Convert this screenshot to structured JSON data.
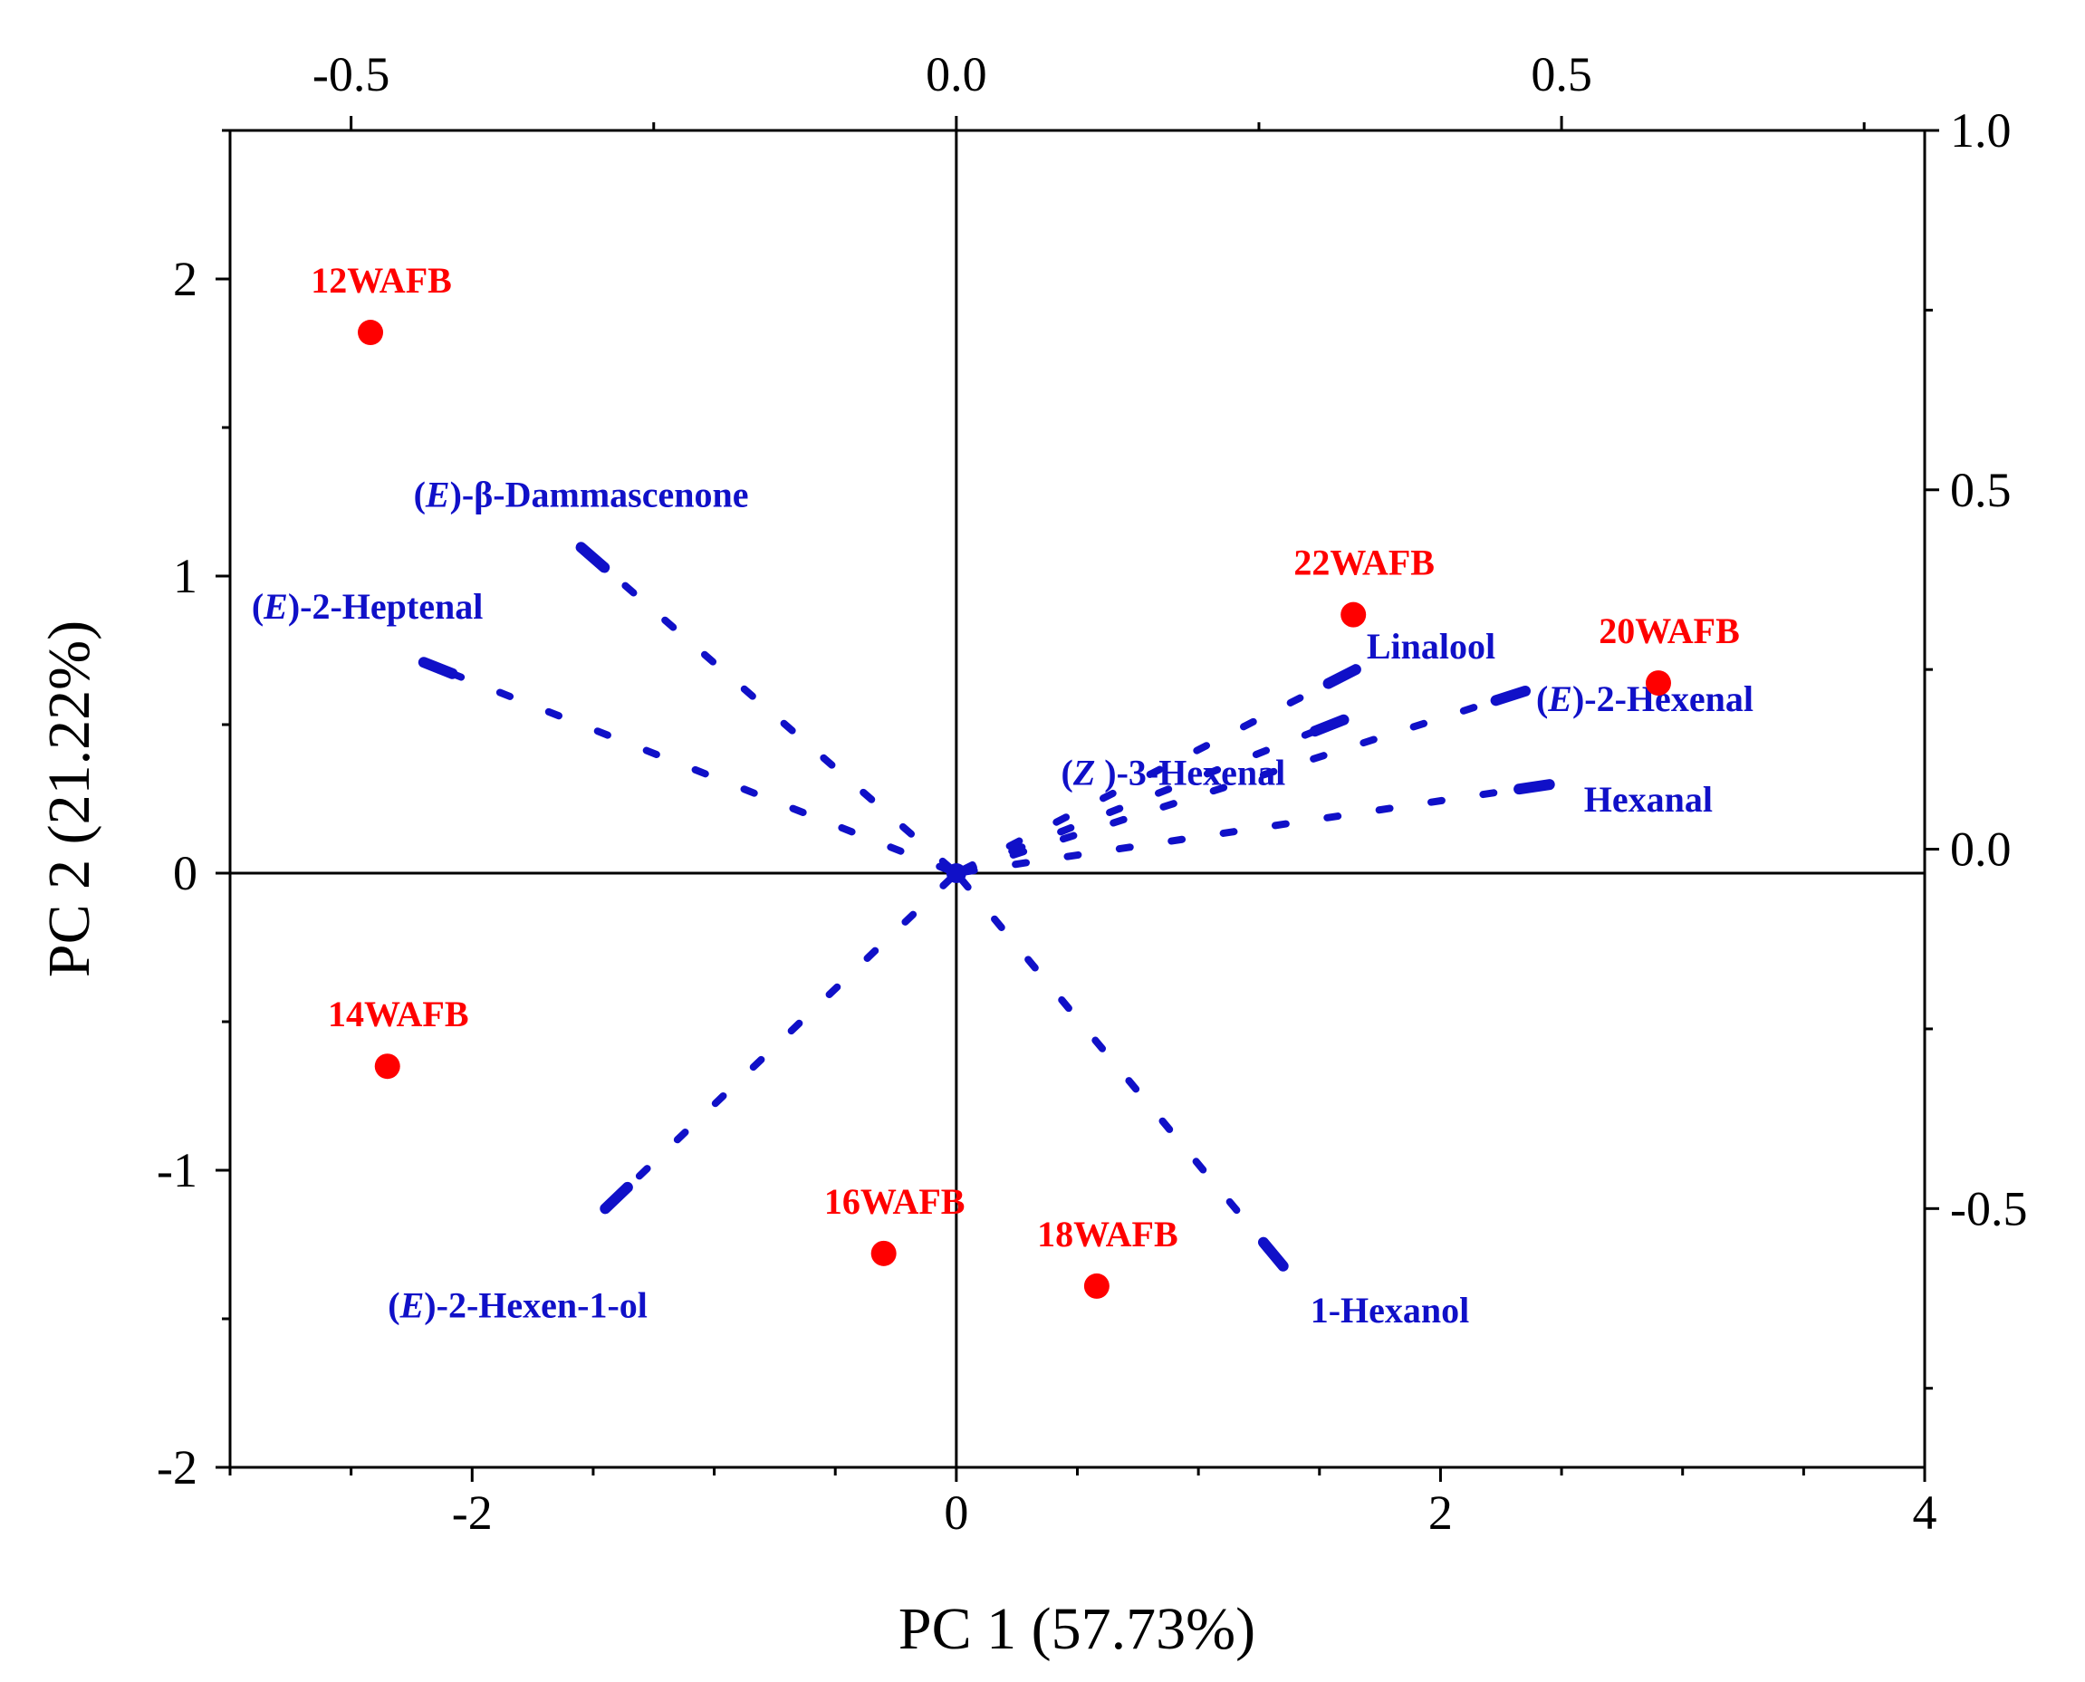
{
  "chart_data": {
    "type": "scatter",
    "subtype": "pca-biplot",
    "title": "",
    "xlabel": "PC 1 (57.73%)",
    "ylabel": "PC 2 (21.22%)",
    "xlim": [
      -3,
      4
    ],
    "ylim": [
      -2,
      2.5
    ],
    "xticks": [
      -2,
      0,
      2,
      4
    ],
    "yticks": [
      -2,
      -1,
      0,
      1,
      2
    ],
    "top_axis": {
      "lim": [
        -0.6,
        0.8
      ],
      "ticks": [
        -0.5,
        0.0,
        0.5
      ],
      "tick_labels": [
        "-0.5",
        "0.0",
        "0.5"
      ]
    },
    "right_axis": {
      "lim": [
        -0.86,
        1.0
      ],
      "ticks": [
        -0.5,
        0.0,
        0.5,
        1.0
      ],
      "tick_labels": [
        "-0.5",
        "0.0",
        "0.5",
        "1.0"
      ]
    },
    "xtick_labels": [
      "-2",
      "0",
      "2",
      "4"
    ],
    "ytick_labels": [
      "-2",
      "-1",
      "0",
      "1",
      "2"
    ],
    "scores": {
      "name": "Samples",
      "color": "#ff0000",
      "points": [
        {
          "label": "12WAFB",
          "x": -2.42,
          "y": 1.82
        },
        {
          "label": "14WAFB",
          "x": -2.35,
          "y": -0.65
        },
        {
          "label": "16WAFB",
          "x": -0.3,
          "y": -1.28
        },
        {
          "label": "18WAFB",
          "x": 0.58,
          "y": -1.39
        },
        {
          "label": "20WAFB",
          "x": 2.9,
          "y": 0.64
        },
        {
          "label": "22WAFB",
          "x": 1.64,
          "y": 0.87
        }
      ]
    },
    "loadings": {
      "name": "Volatile compounds",
      "color": "#1010c8",
      "vectors": [
        {
          "prefix": "(",
          "italic": "E",
          "suffix": ")-β-Dammascenone",
          "x": -0.31,
          "y": 0.42
        },
        {
          "prefix": "(",
          "italic": "E",
          "suffix": ")-2-Heptenal",
          "x": -0.44,
          "y": 0.26
        },
        {
          "prefix": "",
          "italic": "",
          "suffix": "Linalool",
          "x": 0.33,
          "y": 0.25
        },
        {
          "prefix": "(",
          "italic": "E",
          "suffix": ")-2-Hexenal",
          "x": 0.47,
          "y": 0.22
        },
        {
          "prefix": "(",
          "italic": "Z",
          "suffix": " )-3-Hexenal",
          "x": 0.32,
          "y": 0.18
        },
        {
          "prefix": "",
          "italic": "",
          "suffix": "Hexanal",
          "x": 0.49,
          "y": 0.09
        },
        {
          "prefix": "(",
          "italic": "E",
          "suffix": ")-2-Hexen-1-ol",
          "x": -0.29,
          "y": -0.5
        },
        {
          "prefix": "",
          "italic": "",
          "suffix": "1-Hexanol",
          "x": 0.27,
          "y": -0.58
        }
      ]
    }
  }
}
